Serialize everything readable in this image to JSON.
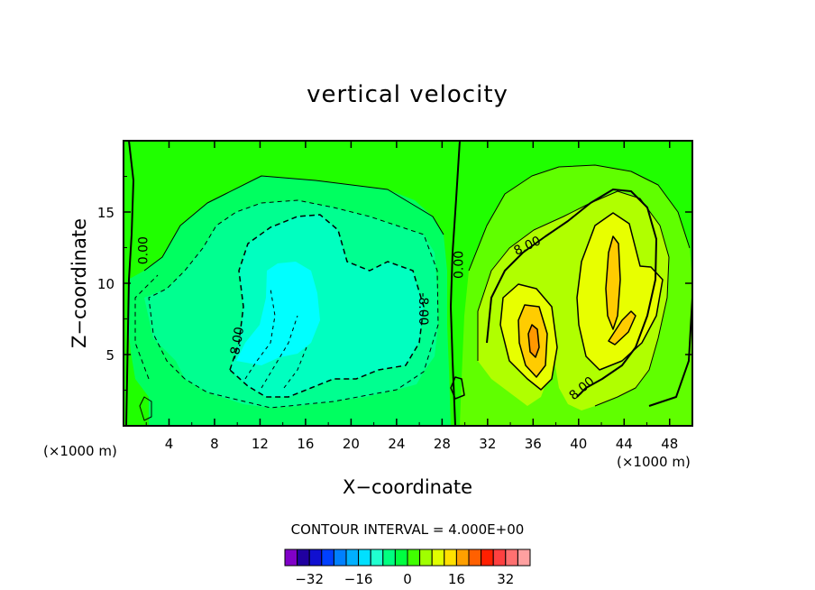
{
  "chart_data": {
    "type": "contour",
    "title": "vertical velocity",
    "xlabel": "X−coordinate",
    "ylabel": "Z−coordinate",
    "x_unit_left": "(×1000 m)",
    "x_unit_right": "(×1000 m)",
    "xlim": [
      0,
      50
    ],
    "ylim": [
      0,
      20
    ],
    "x_ticks": [
      4,
      8,
      12,
      16,
      20,
      24,
      28,
      32,
      36,
      40,
      44,
      48
    ],
    "y_ticks": [
      5,
      10,
      15
    ],
    "contour_interval_text": "CONTOUR INTERVAL =  4.000E+00",
    "contour_labels": [
      {
        "text": "0.00",
        "x": 1.8,
        "y": 12.3,
        "angle": -90
      },
      {
        "text": "0.00",
        "x": 29.5,
        "y": 11.3,
        "angle": -90
      },
      {
        "text": "-8.00",
        "x": 10.0,
        "y": 5.8,
        "angle": -80
      },
      {
        "text": "-8.00",
        "x": 26.3,
        "y": 8.2,
        "angle": 90
      },
      {
        "text": "8.00",
        "x": 35.5,
        "y": 12.6,
        "angle": -25
      },
      {
        "text": "8.00",
        "x": 40.3,
        "y": 2.6,
        "angle": -40
      }
    ],
    "colorbar": {
      "colors": [
        "#8000c8",
        "#2000a0",
        "#1010d0",
        "#0040ff",
        "#0080ff",
        "#00b0ff",
        "#00e0ff",
        "#20ffd0",
        "#00ff80",
        "#00ff40",
        "#40ff00",
        "#a0ff00",
        "#e0ff00",
        "#ffe000",
        "#ffa000",
        "#ff6000",
        "#ff2000",
        "#ff4040",
        "#ff7070",
        "#ffa0a0"
      ],
      "tick_labels": [
        "−32",
        "−16",
        "0",
        "16",
        "32"
      ]
    },
    "fields": {
      "background": "#20ff00",
      "neg4": "#00ff60",
      "neg8": "#00ff90",
      "neg12": "#00ffc0",
      "neg16": "#00ffff",
      "pos4": "#60ff00",
      "pos8": "#b0ff00",
      "pos12": "#e8ff00",
      "pos16": "#ffcc00",
      "pos20": "#ff9800"
    }
  }
}
